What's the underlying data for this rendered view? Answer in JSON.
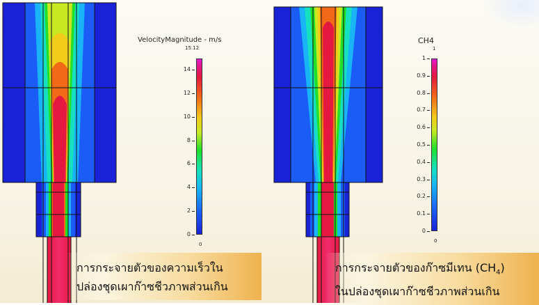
{
  "left_panel": {
    "colorbar": {
      "title": "VelocityMagnitude - m/s",
      "max_label": "15.12",
      "min_label": "0",
      "ticks": [
        "14",
        "12",
        "10",
        "8",
        "6",
        "4",
        "2",
        "0"
      ]
    },
    "caption_line1": "การกระจายตัวของความเร็วใน",
    "caption_line2": "ปล่องชุดเผาก๊าซชีวภาพส่วนเกิน"
  },
  "right_panel": {
    "colorbar": {
      "title": "CH4",
      "max_label": "1",
      "min_label": "0",
      "ticks": [
        "1",
        "0.9",
        "0.8",
        "0.7",
        "0.6",
        "0.5",
        "0.4",
        "0.3",
        "0.2",
        "0.1",
        "0"
      ]
    },
    "caption_line1_text": "การกระจายตัวของก๊าซมีเทน (CH",
    "caption_line1_sub": "4",
    "caption_line1_end": ")",
    "caption_line2": "ในปล่องชุดเผาก๊าซชีวภาพส่วนเกิน"
  },
  "colors": {
    "dark_blue": "#1a22d8",
    "blue": "#1a5cf5",
    "cyan": "#18b4f5",
    "green": "#22e02a",
    "yellow": "#f2cc1a",
    "orange": "#f26a18",
    "red": "#e41840",
    "magenta": "#e01ad2",
    "caption_highlight": "#eeb24e"
  }
}
